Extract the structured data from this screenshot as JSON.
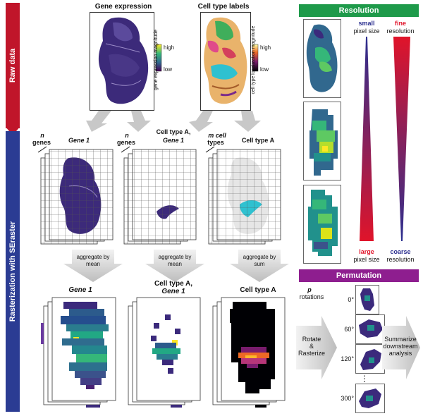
{
  "bands": {
    "raw_data": "Raw data",
    "rasterization": "Rasterization with SEraster",
    "raw_color": "#c0152a",
    "raster_color": "#2b3c93"
  },
  "top": {
    "gene_expression_title": "Gene expression",
    "cell_type_labels_title": "Cell type labels",
    "gene_legend": {
      "high": "high",
      "low": "low",
      "axis": "gene expression magnitude"
    },
    "cell_legend": {
      "high": "high",
      "low": "low",
      "axis": "cell type localization magnitude"
    }
  },
  "stack_titles": {
    "col1_count": "n",
    "col1_unit": "genes",
    "col1_title": "Gene 1",
    "col2_count": "n",
    "col2_unit": "genes",
    "col2_title_a": "Cell type A,",
    "col2_title_b": "Gene 1",
    "col3_count": "m cell",
    "col3_unit": "types",
    "col3_title": "Cell type A"
  },
  "aggregate": {
    "col1": "aggregate by mean",
    "col2": "aggregate by mean",
    "col3": "aggregate by sum"
  },
  "bottom_titles": {
    "col1": "Gene 1",
    "col2_a": "Cell type A,",
    "col2_b": "Gene 1",
    "col3": "Cell type A"
  },
  "resolution": {
    "header": "Resolution",
    "header_color": "#1e9a4a",
    "small": "small",
    "pixel_size_top": "pixel size",
    "fine": "fine",
    "resolution_top": "resolution",
    "large": "large",
    "pixel_size_bottom": "pixel size",
    "coarse": "coarse",
    "resolution_bottom": "resolution"
  },
  "permutation": {
    "header": "Permutation",
    "header_color": "#8e1e8f",
    "p": "p",
    "rotations": "rotations",
    "angles": [
      "0°",
      "60°",
      "120°",
      "300°"
    ],
    "dots": "⋮",
    "rotate_label_a": "Rotate",
    "rotate_label_b": "&",
    "rotate_label_c": "Rasterize",
    "summarize_label_a": "Summarize",
    "summarize_label_b": "downstream",
    "summarize_label_c": "analysis"
  }
}
